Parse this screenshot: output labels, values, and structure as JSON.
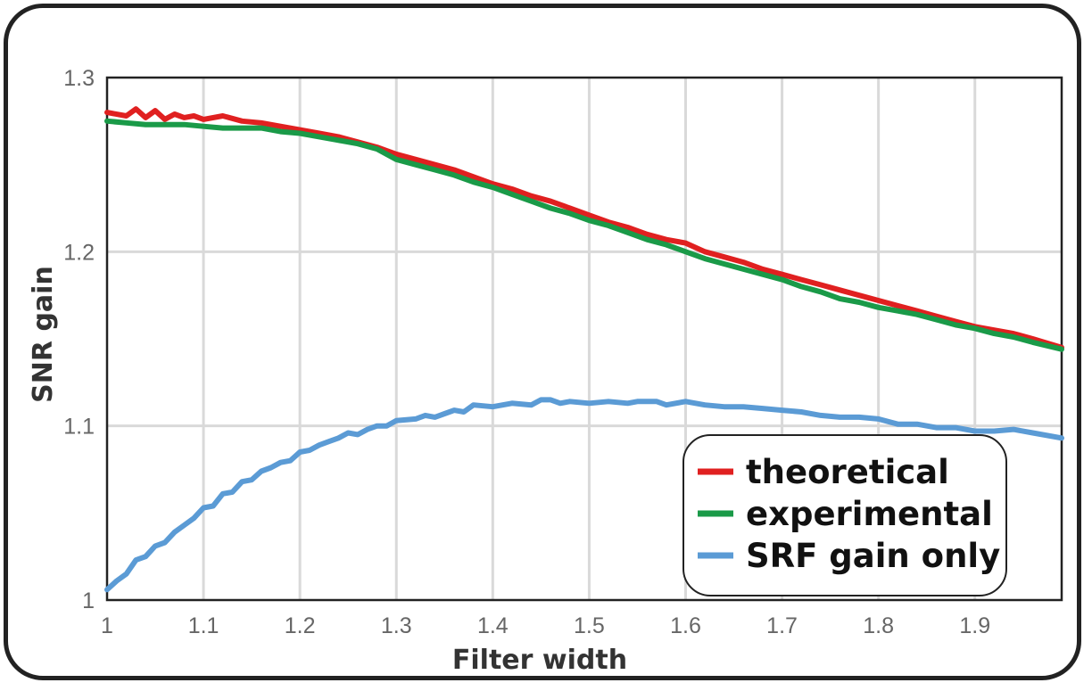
{
  "chart_data": {
    "type": "line",
    "title": "",
    "xlabel": "Filter width",
    "ylabel": "SNR gain",
    "xlim": [
      1.0,
      1.99
    ],
    "ylim": [
      1.0,
      1.3
    ],
    "x_ticks": [
      1,
      1.1,
      1.2,
      1.3,
      1.4,
      1.5,
      1.6,
      1.7,
      1.8,
      1.9
    ],
    "x_tick_labels": [
      "1",
      "1.1",
      "1.2",
      "1.3",
      "1.4",
      "1.5",
      "1.6",
      "1.7",
      "1.8",
      "1.9"
    ],
    "y_ticks": [
      1,
      1.1,
      1.2,
      1.3
    ],
    "y_tick_labels": [
      "1",
      "1.1",
      "1.2",
      "1.3"
    ],
    "grid": true,
    "legend_position": "bottom-right",
    "series": [
      {
        "name": "theoretical",
        "color": "#e02020",
        "points": [
          [
            1.0,
            1.28
          ],
          [
            1.02,
            1.278
          ],
          [
            1.03,
            1.282
          ],
          [
            1.04,
            1.277
          ],
          [
            1.05,
            1.281
          ],
          [
            1.06,
            1.276
          ],
          [
            1.07,
            1.279
          ],
          [
            1.08,
            1.277
          ],
          [
            1.09,
            1.278
          ],
          [
            1.1,
            1.276
          ],
          [
            1.12,
            1.278
          ],
          [
            1.14,
            1.275
          ],
          [
            1.16,
            1.274
          ],
          [
            1.18,
            1.272
          ],
          [
            1.2,
            1.27
          ],
          [
            1.22,
            1.268
          ],
          [
            1.24,
            1.266
          ],
          [
            1.26,
            1.263
          ],
          [
            1.28,
            1.26
          ],
          [
            1.3,
            1.256
          ],
          [
            1.32,
            1.253
          ],
          [
            1.34,
            1.25
          ],
          [
            1.36,
            1.247
          ],
          [
            1.38,
            1.243
          ],
          [
            1.4,
            1.239
          ],
          [
            1.42,
            1.236
          ],
          [
            1.44,
            1.232
          ],
          [
            1.46,
            1.229
          ],
          [
            1.48,
            1.225
          ],
          [
            1.5,
            1.221
          ],
          [
            1.52,
            1.217
          ],
          [
            1.54,
            1.214
          ],
          [
            1.56,
            1.21
          ],
          [
            1.58,
            1.207
          ],
          [
            1.6,
            1.205
          ],
          [
            1.62,
            1.2
          ],
          [
            1.64,
            1.197
          ],
          [
            1.66,
            1.194
          ],
          [
            1.68,
            1.19
          ],
          [
            1.7,
            1.187
          ],
          [
            1.72,
            1.184
          ],
          [
            1.74,
            1.181
          ],
          [
            1.76,
            1.178
          ],
          [
            1.78,
            1.175
          ],
          [
            1.8,
            1.172
          ],
          [
            1.82,
            1.169
          ],
          [
            1.84,
            1.166
          ],
          [
            1.86,
            1.163
          ],
          [
            1.88,
            1.16
          ],
          [
            1.9,
            1.157
          ],
          [
            1.92,
            1.155
          ],
          [
            1.94,
            1.153
          ],
          [
            1.96,
            1.15
          ],
          [
            1.99,
            1.145
          ]
        ]
      },
      {
        "name": "experimental",
        "color": "#1a9a48",
        "points": [
          [
            1.0,
            1.275
          ],
          [
            1.02,
            1.274
          ],
          [
            1.04,
            1.273
          ],
          [
            1.06,
            1.273
          ],
          [
            1.08,
            1.273
          ],
          [
            1.1,
            1.272
          ],
          [
            1.12,
            1.271
          ],
          [
            1.14,
            1.271
          ],
          [
            1.16,
            1.271
          ],
          [
            1.18,
            1.269
          ],
          [
            1.2,
            1.268
          ],
          [
            1.22,
            1.266
          ],
          [
            1.24,
            1.264
          ],
          [
            1.26,
            1.262
          ],
          [
            1.28,
            1.259
          ],
          [
            1.3,
            1.253
          ],
          [
            1.32,
            1.25
          ],
          [
            1.34,
            1.247
          ],
          [
            1.36,
            1.244
          ],
          [
            1.38,
            1.24
          ],
          [
            1.4,
            1.237
          ],
          [
            1.42,
            1.233
          ],
          [
            1.44,
            1.229
          ],
          [
            1.46,
            1.225
          ],
          [
            1.48,
            1.222
          ],
          [
            1.5,
            1.218
          ],
          [
            1.52,
            1.215
          ],
          [
            1.54,
            1.211
          ],
          [
            1.56,
            1.207
          ],
          [
            1.58,
            1.204
          ],
          [
            1.6,
            1.2
          ],
          [
            1.62,
            1.196
          ],
          [
            1.64,
            1.193
          ],
          [
            1.66,
            1.19
          ],
          [
            1.68,
            1.187
          ],
          [
            1.7,
            1.184
          ],
          [
            1.72,
            1.18
          ],
          [
            1.74,
            1.177
          ],
          [
            1.76,
            1.173
          ],
          [
            1.78,
            1.171
          ],
          [
            1.8,
            1.168
          ],
          [
            1.82,
            1.166
          ],
          [
            1.84,
            1.164
          ],
          [
            1.86,
            1.161
          ],
          [
            1.88,
            1.158
          ],
          [
            1.9,
            1.156
          ],
          [
            1.92,
            1.153
          ],
          [
            1.94,
            1.151
          ],
          [
            1.96,
            1.148
          ],
          [
            1.99,
            1.144
          ]
        ]
      },
      {
        "name": "SRF gain only",
        "color": "#5b9bd5",
        "points": [
          [
            1.0,
            1.006
          ],
          [
            1.01,
            1.011
          ],
          [
            1.02,
            1.015
          ],
          [
            1.03,
            1.023
          ],
          [
            1.04,
            1.025
          ],
          [
            1.05,
            1.031
          ],
          [
            1.06,
            1.033
          ],
          [
            1.07,
            1.039
          ],
          [
            1.08,
            1.043
          ],
          [
            1.09,
            1.047
          ],
          [
            1.1,
            1.053
          ],
          [
            1.11,
            1.054
          ],
          [
            1.12,
            1.061
          ],
          [
            1.13,
            1.062
          ],
          [
            1.14,
            1.068
          ],
          [
            1.15,
            1.069
          ],
          [
            1.16,
            1.074
          ],
          [
            1.17,
            1.076
          ],
          [
            1.18,
            1.079
          ],
          [
            1.19,
            1.08
          ],
          [
            1.2,
            1.085
          ],
          [
            1.21,
            1.086
          ],
          [
            1.22,
            1.089
          ],
          [
            1.23,
            1.091
          ],
          [
            1.24,
            1.093
          ],
          [
            1.25,
            1.096
          ],
          [
            1.26,
            1.095
          ],
          [
            1.27,
            1.098
          ],
          [
            1.28,
            1.1
          ],
          [
            1.29,
            1.1
          ],
          [
            1.3,
            1.103
          ],
          [
            1.32,
            1.104
          ],
          [
            1.33,
            1.106
          ],
          [
            1.34,
            1.105
          ],
          [
            1.35,
            1.107
          ],
          [
            1.36,
            1.109
          ],
          [
            1.37,
            1.108
          ],
          [
            1.38,
            1.112
          ],
          [
            1.4,
            1.111
          ],
          [
            1.42,
            1.113
          ],
          [
            1.44,
            1.112
          ],
          [
            1.45,
            1.115
          ],
          [
            1.46,
            1.115
          ],
          [
            1.47,
            1.113
          ],
          [
            1.48,
            1.114
          ],
          [
            1.5,
            1.113
          ],
          [
            1.52,
            1.114
          ],
          [
            1.54,
            1.113
          ],
          [
            1.55,
            1.114
          ],
          [
            1.57,
            1.114
          ],
          [
            1.58,
            1.112
          ],
          [
            1.6,
            1.114
          ],
          [
            1.62,
            1.112
          ],
          [
            1.64,
            1.111
          ],
          [
            1.66,
            1.111
          ],
          [
            1.68,
            1.11
          ],
          [
            1.7,
            1.109
          ],
          [
            1.72,
            1.108
          ],
          [
            1.74,
            1.106
          ],
          [
            1.76,
            1.105
          ],
          [
            1.78,
            1.105
          ],
          [
            1.8,
            1.104
          ],
          [
            1.82,
            1.101
          ],
          [
            1.84,
            1.101
          ],
          [
            1.86,
            1.099
          ],
          [
            1.88,
            1.099
          ],
          [
            1.9,
            1.097
          ],
          [
            1.92,
            1.097
          ],
          [
            1.94,
            1.098
          ],
          [
            1.96,
            1.096
          ],
          [
            1.99,
            1.093
          ]
        ]
      }
    ]
  }
}
